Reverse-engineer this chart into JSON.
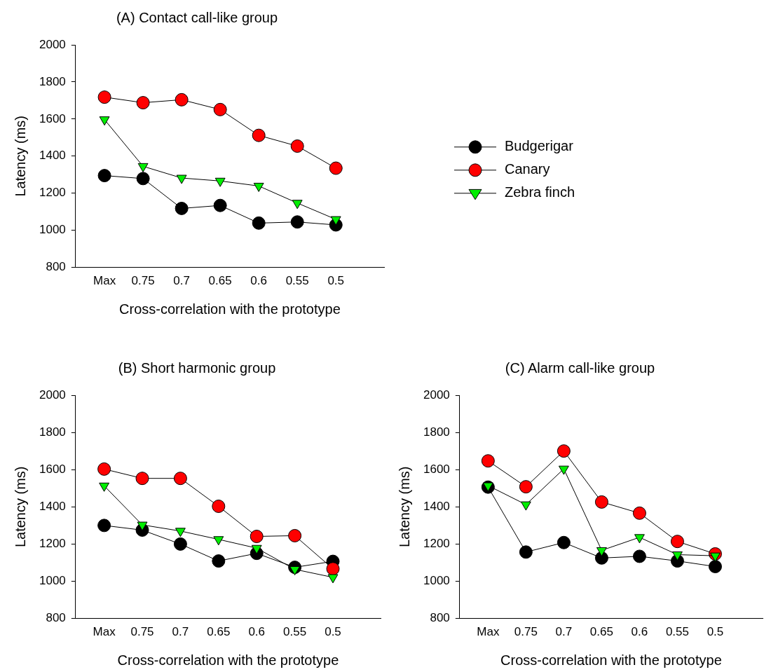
{
  "chart_data": [
    {
      "type": "line",
      "title": "(A) Contact call-like group",
      "xlabel": "Cross-correlation with the prototype",
      "ylabel": "Latency (ms)",
      "categories": [
        "Max",
        "0.75",
        "0.7",
        "0.65",
        "0.6",
        "0.55",
        "0.5"
      ],
      "ylim": [
        800,
        2000
      ],
      "yticks": [
        800,
        1000,
        1200,
        1400,
        1600,
        1800,
        2000
      ],
      "legend": "right",
      "line_style": "solid",
      "series": [
        {
          "name": "Budgerigar",
          "color": "#000000",
          "marker": "circle",
          "values": [
            1295,
            1279,
            1118,
            1134,
            1039,
            1045,
            1029
          ]
        },
        {
          "name": "Canary",
          "color": "#ff0000",
          "marker": "circle",
          "values": [
            1718,
            1688,
            1704,
            1651,
            1512,
            1454,
            1335
          ]
        },
        {
          "name": "Zebra finch",
          "color": "#00ee00",
          "marker": "triangle",
          "values": [
            1597,
            1345,
            1282,
            1266,
            1239,
            1147,
            1059
          ]
        }
      ]
    },
    {
      "type": "line",
      "title": "(B) Short harmonic group",
      "xlabel": "Cross-correlation with the prototype",
      "ylabel": "Latency (ms)",
      "categories": [
        "Max",
        "0.75",
        "0.7",
        "0.65",
        "0.6",
        "0.55",
        "0.5"
      ],
      "ylim": [
        800,
        2000
      ],
      "yticks": [
        800,
        1000,
        1200,
        1400,
        1600,
        1800,
        2000
      ],
      "line_style": "solid",
      "series": [
        {
          "color": "#000000",
          "marker": "circle",
          "values": [
            1300,
            1275,
            1200,
            1109,
            1150,
            1075,
            1107
          ]
        },
        {
          "color": "#ff0000",
          "marker": "circle",
          "values": [
            1603,
            1553,
            1553,
            1403,
            1241,
            1245,
            1067
          ]
        },
        {
          "color": "#00ee00",
          "marker": "triangle",
          "values": [
            1513,
            1303,
            1270,
            1225,
            1178,
            1064,
            1021
          ]
        }
      ]
    },
    {
      "type": "line",
      "title": "(C) Alarm call-like group",
      "xlabel": "Cross-correlation with the prototype",
      "ylabel": "Latency (ms)",
      "categories": [
        "Max",
        "0.75",
        "0.7",
        "0.65",
        "0.6",
        "0.55",
        "0.5"
      ],
      "ylim": [
        800,
        2000
      ],
      "yticks": [
        800,
        1000,
        1200,
        1400,
        1600,
        1800,
        2000
      ],
      "line_style": "solid",
      "series": [
        {
          "color": "#000000",
          "marker": "circle",
          "values": [
            1506,
            1157,
            1208,
            1125,
            1134,
            1109,
            1079
          ]
        },
        {
          "color": "#ff0000",
          "marker": "circle",
          "values": [
            1647,
            1508,
            1700,
            1426,
            1366,
            1214,
            1147
          ]
        },
        {
          "color": "#00ee00",
          "marker": "triangle",
          "values": [
            1514,
            1412,
            1604,
            1166,
            1236,
            1143,
            1137
          ]
        }
      ]
    }
  ]
}
